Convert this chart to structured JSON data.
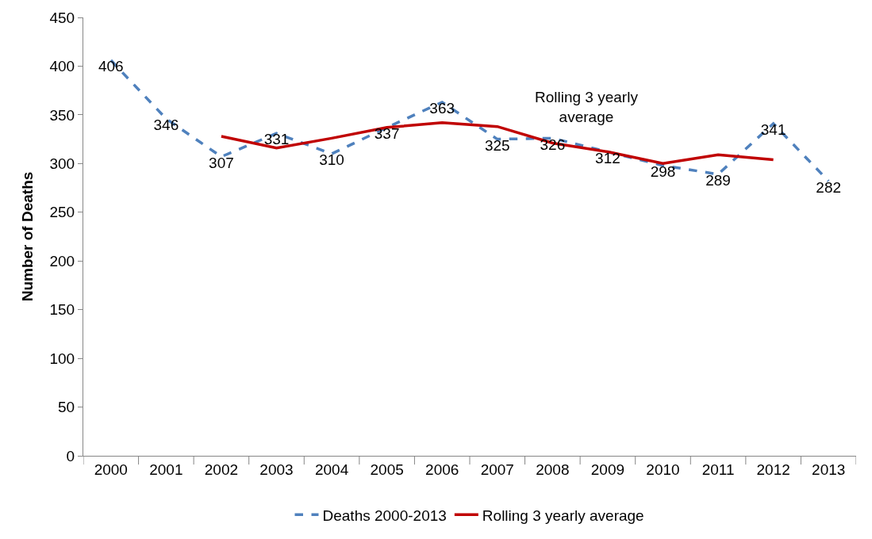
{
  "chart_data": {
    "type": "line",
    "ylabel": "Number of Deaths",
    "categories": [
      "2000",
      "2001",
      "2002",
      "2003",
      "2004",
      "2005",
      "2006",
      "2007",
      "2008",
      "2009",
      "2010",
      "2011",
      "2012",
      "2013"
    ],
    "series": [
      {
        "name": "Deaths 2000-2013",
        "color": "#4f81bd",
        "line_style": "dashed",
        "values": [
          406,
          346,
          307,
          331,
          310,
          337,
          363,
          325,
          326,
          312,
          298,
          289,
          341,
          282
        ],
        "value_labels": [
          "406",
          "346",
          "307",
          "331",
          "310",
          "337",
          "363",
          "325",
          "326",
          "312",
          "298",
          "289",
          "341",
          "282"
        ]
      },
      {
        "name": "Rolling 3 yearly average",
        "color": "#c00000",
        "line_style": "solid",
        "values": [
          null,
          null,
          328,
          316,
          326,
          337,
          342,
          338,
          321,
          312,
          300,
          309,
          304,
          null
        ]
      }
    ],
    "ylim": [
      0,
      450
    ],
    "yticks": [
      0,
      50,
      100,
      150,
      200,
      250,
      300,
      350,
      400,
      450
    ],
    "annotations": [
      "Rolling 3 yearly average"
    ],
    "legend": "bottom",
    "marker": "none"
  }
}
